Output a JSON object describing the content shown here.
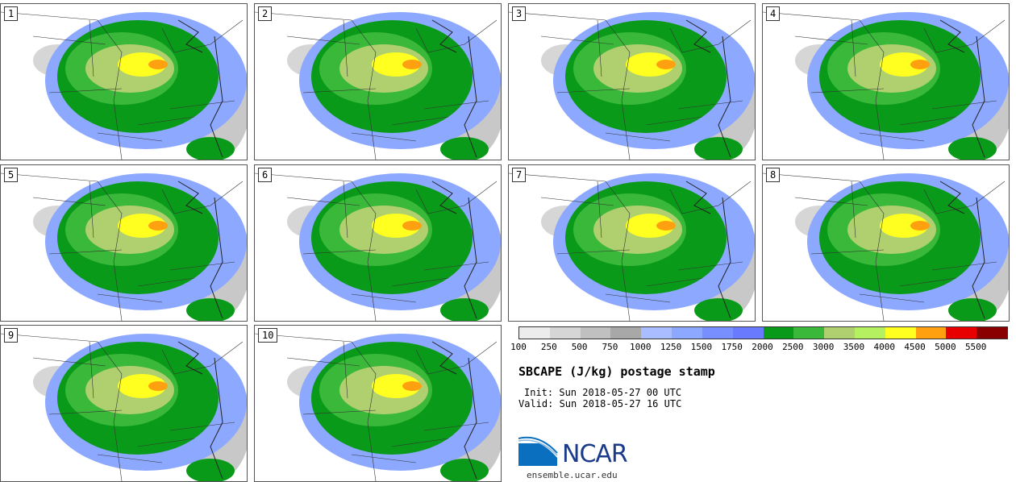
{
  "panels": [
    {
      "label": "1"
    },
    {
      "label": "2"
    },
    {
      "label": "3"
    },
    {
      "label": "4"
    },
    {
      "label": "5"
    },
    {
      "label": "6"
    },
    {
      "label": "7"
    },
    {
      "label": "8"
    },
    {
      "label": "9"
    },
    {
      "label": "10"
    }
  ],
  "colorbar": {
    "colors": [
      "#ececec",
      "#d6d6d6",
      "#c0c0c0",
      "#a8a8a8",
      "#aabdff",
      "#8da8ff",
      "#7890ff",
      "#6a7aff",
      "#0a9a1a",
      "#3ab83a",
      "#b0d070",
      "#b4f060",
      "#ffff20",
      "#ffa010",
      "#e80000",
      "#8a0000"
    ],
    "tick_labels": [
      "100",
      "250",
      "500",
      "750",
      "1000",
      "1250",
      "1500",
      "1750",
      "2000",
      "2500",
      "3000",
      "3500",
      "4000",
      "4500",
      "5000",
      "5500"
    ]
  },
  "title": "SBCAPE (J/kg) postage stamp",
  "init": "Init: Sun 2018-05-27 00 UTC",
  "valid": "Valid: Sun 2018-05-27 16 UTC",
  "logo": {
    "name": "NCAR",
    "url": "ensemble.ucar.edu"
  }
}
